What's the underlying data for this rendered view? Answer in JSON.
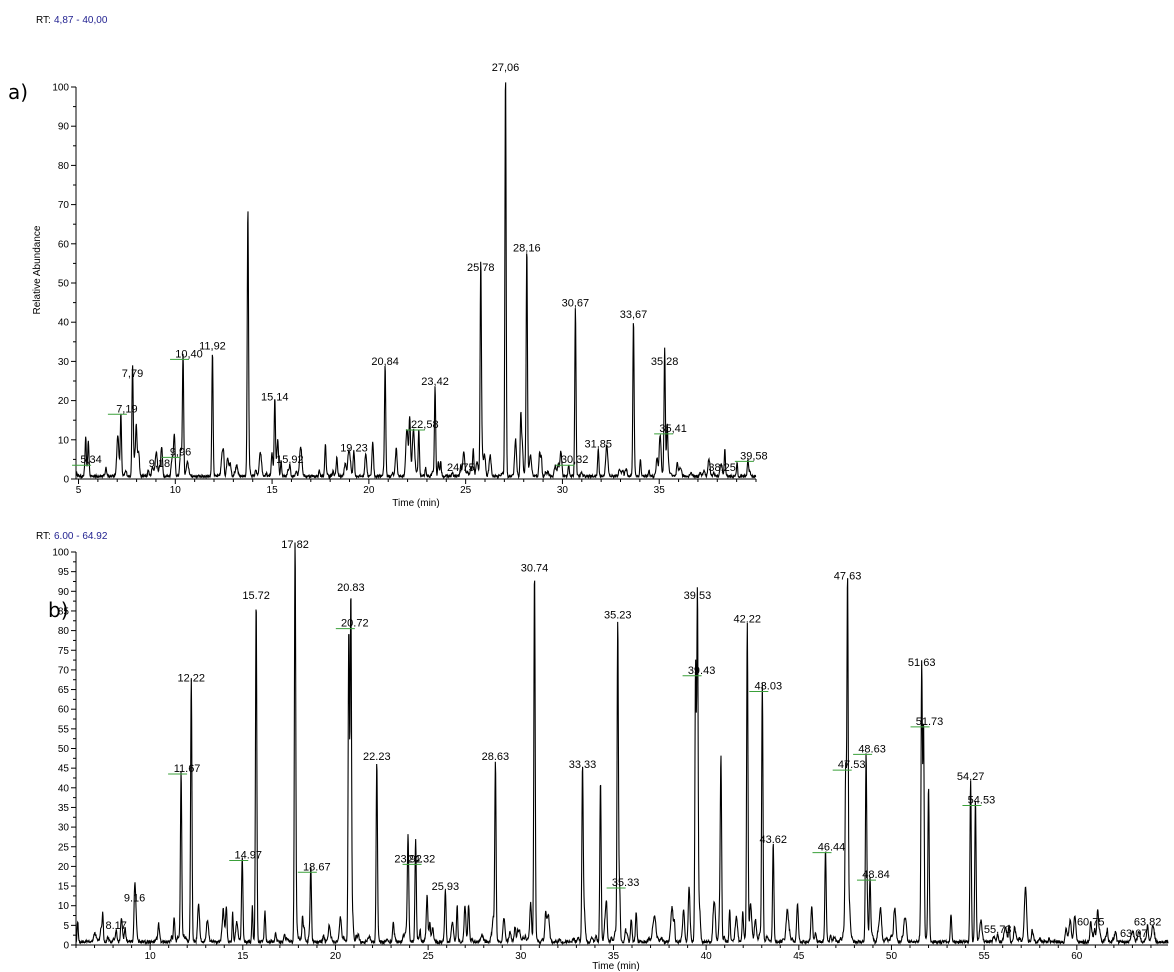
{
  "chart_data": [
    {
      "type": "line",
      "panel_label": "a)",
      "rt_label": "RT:",
      "rt_range": "4,87 - 40,00",
      "ylabel": "Relative Abundance",
      "xlabel": "Time (min)",
      "xlim": [
        4.87,
        40.0
      ],
      "ylim": [
        0,
        100
      ],
      "x_ticks": [
        "5",
        "10",
        "15",
        "20",
        "25",
        "30",
        "35"
      ],
      "x_tick_values": [
        5,
        10,
        15,
        20,
        25,
        30,
        35
      ],
      "y_ticks": [
        "0",
        "10",
        "20",
        "30",
        "40",
        "50",
        "60",
        "70",
        "80",
        "90",
        "100"
      ],
      "y_tick_values": [
        0,
        10,
        20,
        30,
        40,
        50,
        60,
        70,
        80,
        90,
        100
      ],
      "peaks": [
        {
          "x": 5.34,
          "y": 3,
          "label": "5,34",
          "marker": true
        },
        {
          "x": 7.19,
          "y": 16,
          "label": "7,19",
          "marker": true
        },
        {
          "x": 7.79,
          "y": 25,
          "label": "7,79"
        },
        {
          "x": 9.18,
          "y": 2,
          "label": "9,18"
        },
        {
          "x": 9.96,
          "y": 5,
          "label": "9,96",
          "marker": true
        },
        {
          "x": 10.4,
          "y": 30,
          "label": "10,40",
          "marker": true
        },
        {
          "x": 11.92,
          "y": 32,
          "label": "11,92"
        },
        {
          "x": 13.75,
          "y": 62,
          "label": ""
        },
        {
          "x": 15.14,
          "y": 19,
          "label": "15,14"
        },
        {
          "x": 15.92,
          "y": 3,
          "label": "15,92"
        },
        {
          "x": 19.23,
          "y": 6,
          "label": "19,23"
        },
        {
          "x": 20.84,
          "y": 28,
          "label": "20,84"
        },
        {
          "x": 22.1,
          "y": 11,
          "label": ""
        },
        {
          "x": 22.58,
          "y": 12,
          "label": "22,58",
          "marker": true
        },
        {
          "x": 23.42,
          "y": 23,
          "label": "23,42"
        },
        {
          "x": 24.75,
          "y": 1,
          "label": "24,75"
        },
        {
          "x": 25.78,
          "y": 52,
          "label": "25,78"
        },
        {
          "x": 27.06,
          "y": 103,
          "label": "27,06"
        },
        {
          "x": 27.85,
          "y": 16,
          "label": ""
        },
        {
          "x": 28.16,
          "y": 57,
          "label": "28,16"
        },
        {
          "x": 30.32,
          "y": 3,
          "label": "30,32",
          "marker": true
        },
        {
          "x": 30.67,
          "y": 43,
          "label": "30,67"
        },
        {
          "x": 31.85,
          "y": 7,
          "label": "31,85"
        },
        {
          "x": 33.67,
          "y": 40,
          "label": "33,67"
        },
        {
          "x": 35.28,
          "y": 28,
          "label": "35,28"
        },
        {
          "x": 35.41,
          "y": 11,
          "label": "35,41",
          "marker": true
        },
        {
          "x": 38.25,
          "y": 1,
          "label": "38,25"
        },
        {
          "x": 39.58,
          "y": 4,
          "label": "39,58",
          "marker": true
        }
      ],
      "colors": {
        "trace": "#000000",
        "marker": "#3aa03a",
        "rt_value": "#1f1f8f"
      }
    },
    {
      "type": "line",
      "panel_label": "b)",
      "rt_label": "RT:",
      "rt_range": "6.00 - 64.92",
      "ylabel": "",
      "xlabel": "Time (min)",
      "xlim": [
        6.0,
        64.92
      ],
      "ylim": [
        0,
        100
      ],
      "x_ticks": [
        "10",
        "15",
        "20",
        "25",
        "30",
        "35",
        "40",
        "45",
        "50",
        "55",
        "60"
      ],
      "x_tick_values": [
        10,
        15,
        20,
        25,
        30,
        35,
        40,
        45,
        50,
        55,
        60
      ],
      "y_ticks": [
        "0",
        "5",
        "10",
        "15",
        "20",
        "25",
        "30",
        "35",
        "40",
        "45",
        "50",
        "55",
        "60",
        "65",
        "70",
        "75",
        "80",
        "85",
        "90",
        "95",
        "100"
      ],
      "y_tick_values": [
        0,
        5,
        10,
        15,
        20,
        25,
        30,
        35,
        40,
        45,
        50,
        55,
        60,
        65,
        70,
        75,
        80,
        85,
        90,
        95,
        100
      ],
      "peaks": [
        {
          "x": 8.17,
          "y": 3,
          "label": "8.17"
        },
        {
          "x": 9.16,
          "y": 10,
          "label": "9.16"
        },
        {
          "x": 11.67,
          "y": 43,
          "label": "11.67",
          "marker": true
        },
        {
          "x": 12.22,
          "y": 66,
          "label": "12.22"
        },
        {
          "x": 14.97,
          "y": 21,
          "label": "14.97",
          "marker": true
        },
        {
          "x": 15.72,
          "y": 87,
          "label": "15.72"
        },
        {
          "x": 17.82,
          "y": 100,
          "label": "17.82"
        },
        {
          "x": 18.67,
          "y": 18,
          "label": "18.67",
          "marker": true
        },
        {
          "x": 20.72,
          "y": 80,
          "label": "20.72",
          "marker": true
        },
        {
          "x": 20.83,
          "y": 89,
          "label": "20.83"
        },
        {
          "x": 22.23,
          "y": 46,
          "label": "22.23"
        },
        {
          "x": 23.92,
          "y": 20,
          "label": "23.92"
        },
        {
          "x": 24.32,
          "y": 20,
          "label": "24.32",
          "marker": true
        },
        {
          "x": 25.93,
          "y": 13,
          "label": "25.93"
        },
        {
          "x": 28.63,
          "y": 46,
          "label": "28.63"
        },
        {
          "x": 30.74,
          "y": 94,
          "label": "30.74"
        },
        {
          "x": 33.33,
          "y": 44,
          "label": "33.33"
        },
        {
          "x": 34.3,
          "y": 41,
          "label": ""
        },
        {
          "x": 35.23,
          "y": 82,
          "label": "35.23"
        },
        {
          "x": 35.33,
          "y": 14,
          "label": "35.33",
          "marker": true
        },
        {
          "x": 39.43,
          "y": 68,
          "label": "39.43",
          "marker": true
        },
        {
          "x": 39.53,
          "y": 87,
          "label": "39.53"
        },
        {
          "x": 40.8,
          "y": 43,
          "label": ""
        },
        {
          "x": 42.22,
          "y": 81,
          "label": "42.22"
        },
        {
          "x": 43.03,
          "y": 64,
          "label": "43.03",
          "marker": true
        },
        {
          "x": 43.62,
          "y": 25,
          "label": "43.62"
        },
        {
          "x": 46.44,
          "y": 23,
          "label": "46.44",
          "marker": true
        },
        {
          "x": 47.53,
          "y": 44,
          "label": "47.53",
          "marker": true
        },
        {
          "x": 47.63,
          "y": 92,
          "label": "47.63"
        },
        {
          "x": 48.63,
          "y": 48,
          "label": "48.63",
          "marker": true
        },
        {
          "x": 48.84,
          "y": 16,
          "label": "48.84",
          "marker": true
        },
        {
          "x": 51.63,
          "y": 70,
          "label": "51.63"
        },
        {
          "x": 51.73,
          "y": 55,
          "label": "51.73",
          "marker": true
        },
        {
          "x": 52.0,
          "y": 38,
          "label": ""
        },
        {
          "x": 54.27,
          "y": 41,
          "label": "54.27"
        },
        {
          "x": 54.53,
          "y": 35,
          "label": "54.53",
          "marker": true
        },
        {
          "x": 55.73,
          "y": 2,
          "label": "55.73"
        },
        {
          "x": 60.75,
          "y": 4,
          "label": "60.75"
        },
        {
          "x": 63.07,
          "y": 1,
          "label": "63.07"
        },
        {
          "x": 63.82,
          "y": 4,
          "label": "63.82"
        }
      ],
      "colors": {
        "trace": "#000000",
        "marker": "#3aa03a",
        "rt_value": "#1f1f8f"
      }
    }
  ]
}
